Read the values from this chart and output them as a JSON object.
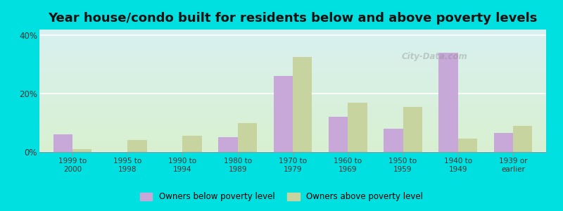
{
  "title": "Year house/condo built for residents below and above poverty levels",
  "categories": [
    "1999 to\n2000",
    "1995 to\n1998",
    "1990 to\n1994",
    "1980 to\n1989",
    "1970 to\n1979",
    "1960 to\n1969",
    "1950 to\n1959",
    "1940 to\n1949",
    "1939 or\nearlier"
  ],
  "below_poverty": [
    6.0,
    0.0,
    0.0,
    5.0,
    26.0,
    12.0,
    8.0,
    34.0,
    6.5
  ],
  "above_poverty": [
    1.0,
    4.0,
    5.5,
    10.0,
    32.5,
    17.0,
    15.5,
    4.5,
    9.0
  ],
  "below_color": "#c8a8d8",
  "above_color": "#c8d4a0",
  "background_top": "#d8f0f0",
  "background_bottom": "#d8f0d0",
  "outer_background": "#00e0e0",
  "ylim": [
    0,
    42
  ],
  "yticks": [
    0,
    20,
    40
  ],
  "ytick_labels": [
    "0%",
    "20%",
    "40%"
  ],
  "legend_below": "Owners below poverty level",
  "legend_above": "Owners above poverty level",
  "title_fontsize": 13,
  "bar_width": 0.35
}
